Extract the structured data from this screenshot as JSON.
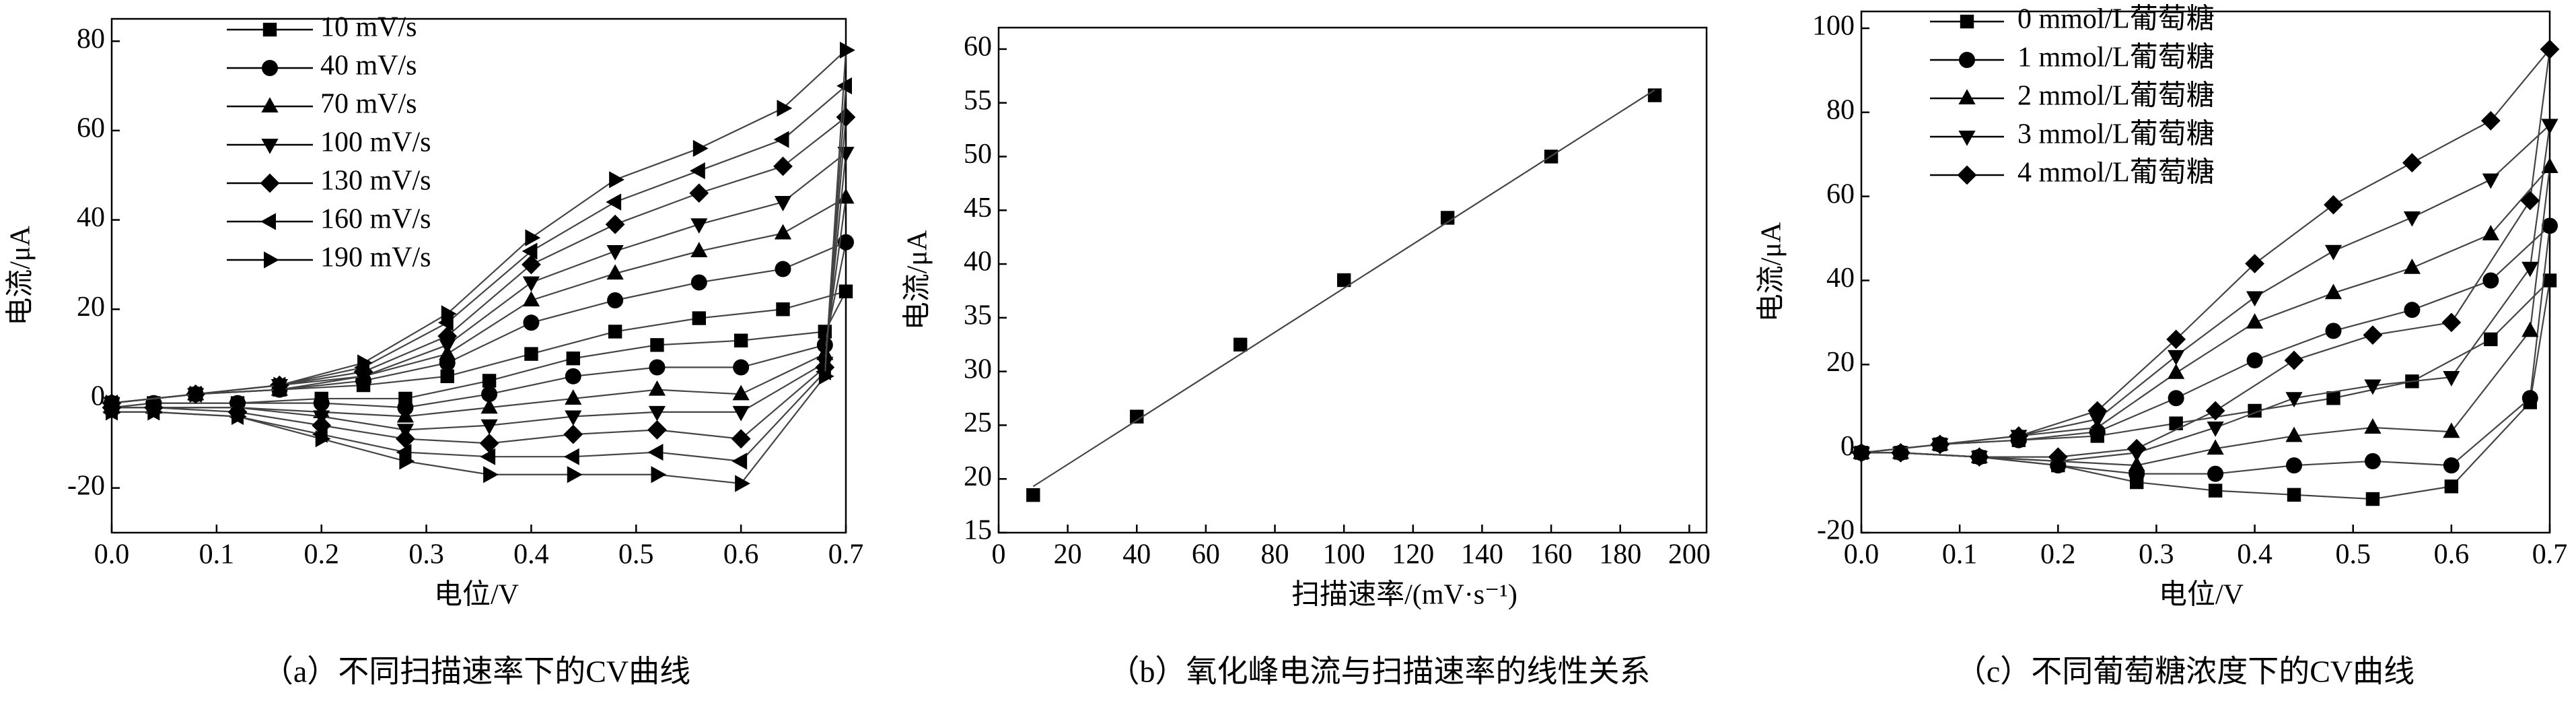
{
  "chart_data": [
    {
      "type": "line",
      "caption": "（a）不同扫描速率下的CV曲线",
      "xlabel": "电位/V",
      "ylabel": "电流/μA",
      "xlim": [
        0,
        0.7
      ],
      "ylim": [
        -30,
        85
      ],
      "xticks": [
        {
          "value": 0,
          "label": "0.0"
        },
        0.1,
        0.2,
        0.3,
        0.4,
        0.5,
        0.6,
        0.7
      ],
      "yticks": [
        -20,
        0,
        20,
        40,
        60,
        80
      ],
      "x": [
        0,
        0.08,
        0.16,
        0.24,
        0.32,
        0.4,
        0.48,
        0.56,
        0.64,
        0.7,
        0.68,
        0.6,
        0.52,
        0.44,
        0.36,
        0.28,
        0.2,
        0.12,
        0.04,
        0
      ],
      "series": [
        {
          "name": "10 mV/s",
          "marker": "square",
          "values": [
            -1,
            1,
            2,
            3,
            5,
            10,
            15,
            18,
            20,
            24,
            15,
            13,
            12,
            9,
            4,
            0,
            0,
            -1,
            -1,
            -2
          ]
        },
        {
          "name": "40 mV/s",
          "marker": "circle",
          "values": [
            -1,
            1,
            2,
            4,
            8,
            17,
            22,
            26,
            29,
            35,
            12,
            7,
            7,
            5,
            1,
            -2,
            -1,
            -1,
            -1,
            -2
          ]
        },
        {
          "name": "70 mV/s",
          "marker": "triangle-up",
          "values": [
            -1,
            1,
            2,
            5,
            10,
            22,
            28,
            33,
            37,
            45,
            10,
            1,
            2,
            0,
            -2,
            -4,
            -3,
            -2,
            -2,
            -2
          ]
        },
        {
          "name": "100 mV/s",
          "marker": "triangle-down",
          "values": [
            -1,
            1,
            3,
            5,
            12,
            26,
            33,
            39,
            44,
            55,
            8,
            -3,
            -3,
            -4,
            -6,
            -7,
            -4,
            -2,
            -2,
            -2
          ]
        },
        {
          "name": "130 mV/s",
          "marker": "diamond",
          "values": [
            -1,
            1,
            3,
            6,
            14,
            30,
            39,
            46,
            52,
            63,
            7,
            -9,
            -7,
            -8,
            -10,
            -9,
            -6,
            -3,
            -2,
            -2
          ]
        },
        {
          "name": "160 mV/s",
          "marker": "triangle-left",
          "values": [
            -1,
            1,
            3,
            7,
            17,
            33,
            44,
            51,
            58,
            70,
            6,
            -14,
            -12,
            -13,
            -13,
            -12,
            -8,
            -4,
            -3,
            -3
          ]
        },
        {
          "name": "190 mV/s",
          "marker": "triangle-right",
          "values": [
            -1,
            1,
            3,
            8,
            19,
            36,
            49,
            56,
            65,
            78,
            5,
            -19,
            -17,
            -17,
            -17,
            -14,
            -9,
            -4,
            -3,
            -3
          ]
        }
      ]
    },
    {
      "type": "scatter",
      "caption": "（b）氧化峰电流与扫描速率的线性关系",
      "xlabel": "扫描速率/(mV·s⁻¹)",
      "ylabel": "电流/μA",
      "xlim": [
        0,
        205
      ],
      "ylim": [
        15,
        62
      ],
      "xticks": [
        0,
        20,
        40,
        60,
        80,
        100,
        120,
        140,
        160,
        180,
        200
      ],
      "yticks": [
        15,
        20,
        25,
        30,
        35,
        40,
        45,
        50,
        55,
        60
      ],
      "x": [
        10,
        40,
        70,
        100,
        130,
        160,
        190
      ],
      "series": [
        {
          "marker": "square",
          "line": false,
          "values": [
            18.5,
            25.8,
            32.5,
            38.5,
            44.3,
            50,
            55.7
          ]
        },
        {
          "marker": "none",
          "line": true,
          "x": [
            10,
            190
          ],
          "values": [
            19.3,
            56.2
          ]
        }
      ]
    },
    {
      "type": "line",
      "caption": "（c）不同葡萄糖浓度下的CV曲线",
      "xlabel": "电位/V",
      "ylabel": "电流/μA",
      "xlim": [
        0,
        0.7
      ],
      "ylim": [
        -20,
        104
      ],
      "xticks": [
        {
          "value": 0,
          "label": "0.0"
        },
        0.1,
        0.2,
        0.3,
        0.4,
        0.5,
        0.6,
        0.7
      ],
      "yticks": [
        -20,
        0,
        20,
        40,
        60,
        80,
        100
      ],
      "x": [
        0,
        0.08,
        0.16,
        0.24,
        0.32,
        0.4,
        0.48,
        0.56,
        0.64,
        0.7,
        0.68,
        0.6,
        0.52,
        0.44,
        0.36,
        0.28,
        0.2,
        0.12,
        0.04,
        0
      ],
      "series": [
        {
          "name": "0 mmol/L葡萄糖",
          "marker": "square",
          "values": [
            -1,
            1,
            2,
            3,
            6,
            9,
            12,
            16,
            26,
            40,
            11,
            -9,
            -12,
            -11,
            -10,
            -8,
            -4,
            -2,
            -1,
            -1
          ]
        },
        {
          "name": "1 mmol/L葡萄糖",
          "marker": "circle",
          "values": [
            -1,
            1,
            2,
            4,
            12,
            21,
            28,
            33,
            40,
            53,
            12,
            -4,
            -3,
            -4,
            -6,
            -6,
            -4,
            -2,
            -1,
            -1
          ]
        },
        {
          "name": "2 mmol/L葡萄糖",
          "marker": "triangle-up",
          "values": [
            -1,
            1,
            3,
            5,
            18,
            30,
            37,
            43,
            51,
            67,
            28,
            4,
            5,
            3,
            0,
            -4,
            -3,
            -2,
            -1,
            -1
          ]
        },
        {
          "name": "3 mmol/L葡萄糖",
          "marker": "triangle-down",
          "values": [
            -1,
            1,
            3,
            7,
            22,
            36,
            47,
            55,
            64,
            77,
            43,
            17,
            15,
            12,
            5,
            -1,
            -3,
            -2,
            -1,
            -1
          ]
        },
        {
          "name": "4 mmol/L葡萄糖",
          "marker": "diamond",
          "values": [
            -1,
            1,
            3,
            9,
            26,
            44,
            58,
            68,
            78,
            95,
            59,
            30,
            27,
            21,
            9,
            0,
            -2,
            -2,
            -1,
            -1
          ]
        }
      ]
    }
  ]
}
